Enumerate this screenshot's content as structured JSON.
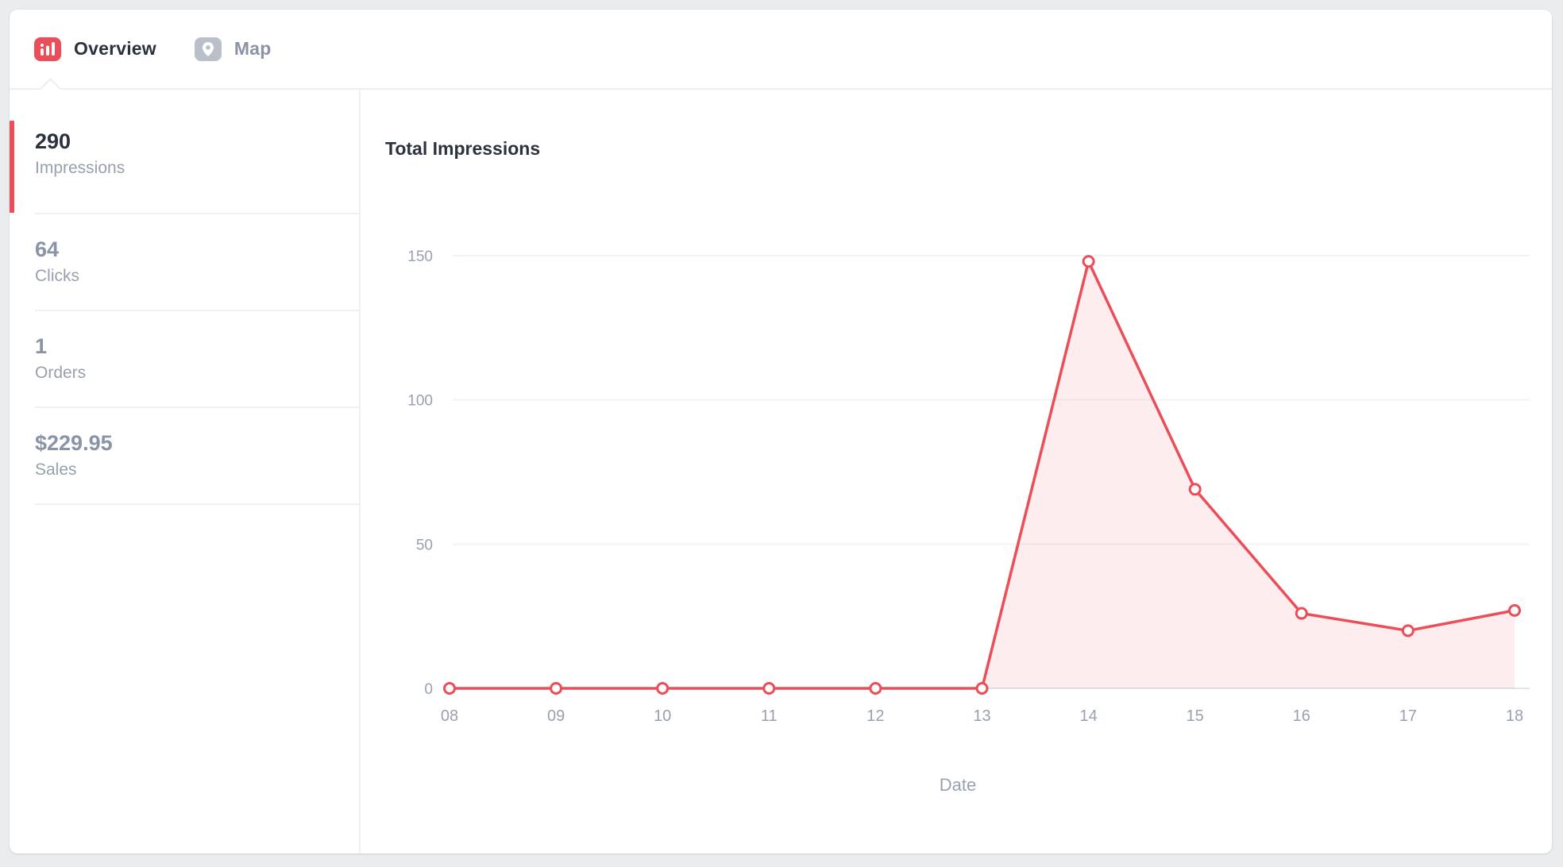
{
  "tabs": {
    "overview": "Overview",
    "map": "Map"
  },
  "sidebar": {
    "metrics": [
      {
        "value": "290",
        "label": "Impressions",
        "active": true
      },
      {
        "value": "64",
        "label": "Clicks",
        "active": false
      },
      {
        "value": "1",
        "label": "Orders",
        "active": false
      },
      {
        "value": "$229.95",
        "label": "Sales",
        "active": false
      }
    ]
  },
  "chart": {
    "title": "Total Impressions"
  },
  "chart_data": {
    "type": "area",
    "title": "Total Impressions",
    "categories": [
      "08",
      "09",
      "10",
      "11",
      "12",
      "13",
      "14",
      "15",
      "16",
      "17",
      "18"
    ],
    "values": [
      0,
      0,
      0,
      0,
      0,
      0,
      148,
      69,
      26,
      20,
      27
    ],
    "xlabel": "Date",
    "ylabel": "",
    "yticks": [
      0,
      50,
      100,
      150
    ],
    "ylim": [
      0,
      160
    ],
    "grid": "horizontal-only",
    "legend": "none",
    "marker": "open-circle"
  },
  "colors": {
    "accent_red": "#ec4e59",
    "area_fill": "rgba(236,78,89,0.10)",
    "gridline": "#f1f3f5",
    "zero_line": "#e1e4e8",
    "axis_text": "#99a1b0",
    "dark_text": "#2b313e",
    "muted_number": "#8b93a6",
    "muted_label": "#98a0b0",
    "map_icon_bg": "#b9c0ca"
  }
}
